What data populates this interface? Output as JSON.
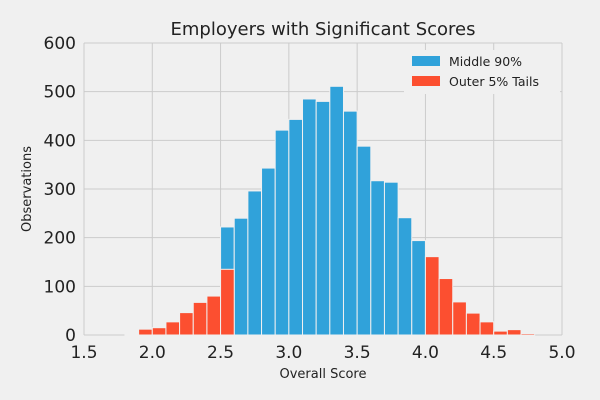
{
  "chart_data": {
    "type": "bar",
    "title": "Employers with Significant Scores",
    "xlabel": "Overall Score",
    "ylabel": "Observations",
    "xlim": [
      1.5,
      5.0
    ],
    "ylim": [
      0,
      600
    ],
    "xticks": [
      "1.5",
      "2.0",
      "2.5",
      "3.0",
      "3.5",
      "4.0",
      "4.5",
      "5.0"
    ],
    "yticks": [
      "0",
      "100",
      "200",
      "300",
      "400",
      "500",
      "600"
    ],
    "grid": true,
    "bin_width": 0.1,
    "legend_position": "top-right",
    "series": [
      {
        "name": "Middle 90%",
        "color": "#30a2da",
        "bins": [
          {
            "x": 2.55,
            "value": 222
          },
          {
            "x": 2.65,
            "value": 240
          },
          {
            "x": 2.75,
            "value": 296
          },
          {
            "x": 2.85,
            "value": 343
          },
          {
            "x": 2.95,
            "value": 421
          },
          {
            "x": 3.05,
            "value": 443
          },
          {
            "x": 3.15,
            "value": 485
          },
          {
            "x": 3.25,
            "value": 480
          },
          {
            "x": 3.35,
            "value": 511
          },
          {
            "x": 3.45,
            "value": 460
          },
          {
            "x": 3.55,
            "value": 388
          },
          {
            "x": 3.65,
            "value": 317
          },
          {
            "x": 3.75,
            "value": 314
          },
          {
            "x": 3.85,
            "value": 241
          },
          {
            "x": 3.95,
            "value": 194
          }
        ]
      },
      {
        "name": "Outer 5% Tails",
        "color": "#fc4f30",
        "bins": [
          {
            "x": 1.85,
            "value": 2
          },
          {
            "x": 1.95,
            "value": 12
          },
          {
            "x": 2.05,
            "value": 15
          },
          {
            "x": 2.15,
            "value": 27
          },
          {
            "x": 2.25,
            "value": 46
          },
          {
            "x": 2.35,
            "value": 67
          },
          {
            "x": 2.45,
            "value": 80
          },
          {
            "x": 2.55,
            "value": 135
          },
          {
            "x": 4.05,
            "value": 161
          },
          {
            "x": 4.15,
            "value": 116
          },
          {
            "x": 4.25,
            "value": 68
          },
          {
            "x": 4.35,
            "value": 45
          },
          {
            "x": 4.45,
            "value": 27
          },
          {
            "x": 4.55,
            "value": 8
          },
          {
            "x": 4.65,
            "value": 11
          },
          {
            "x": 4.75,
            "value": 3
          }
        ]
      }
    ]
  }
}
